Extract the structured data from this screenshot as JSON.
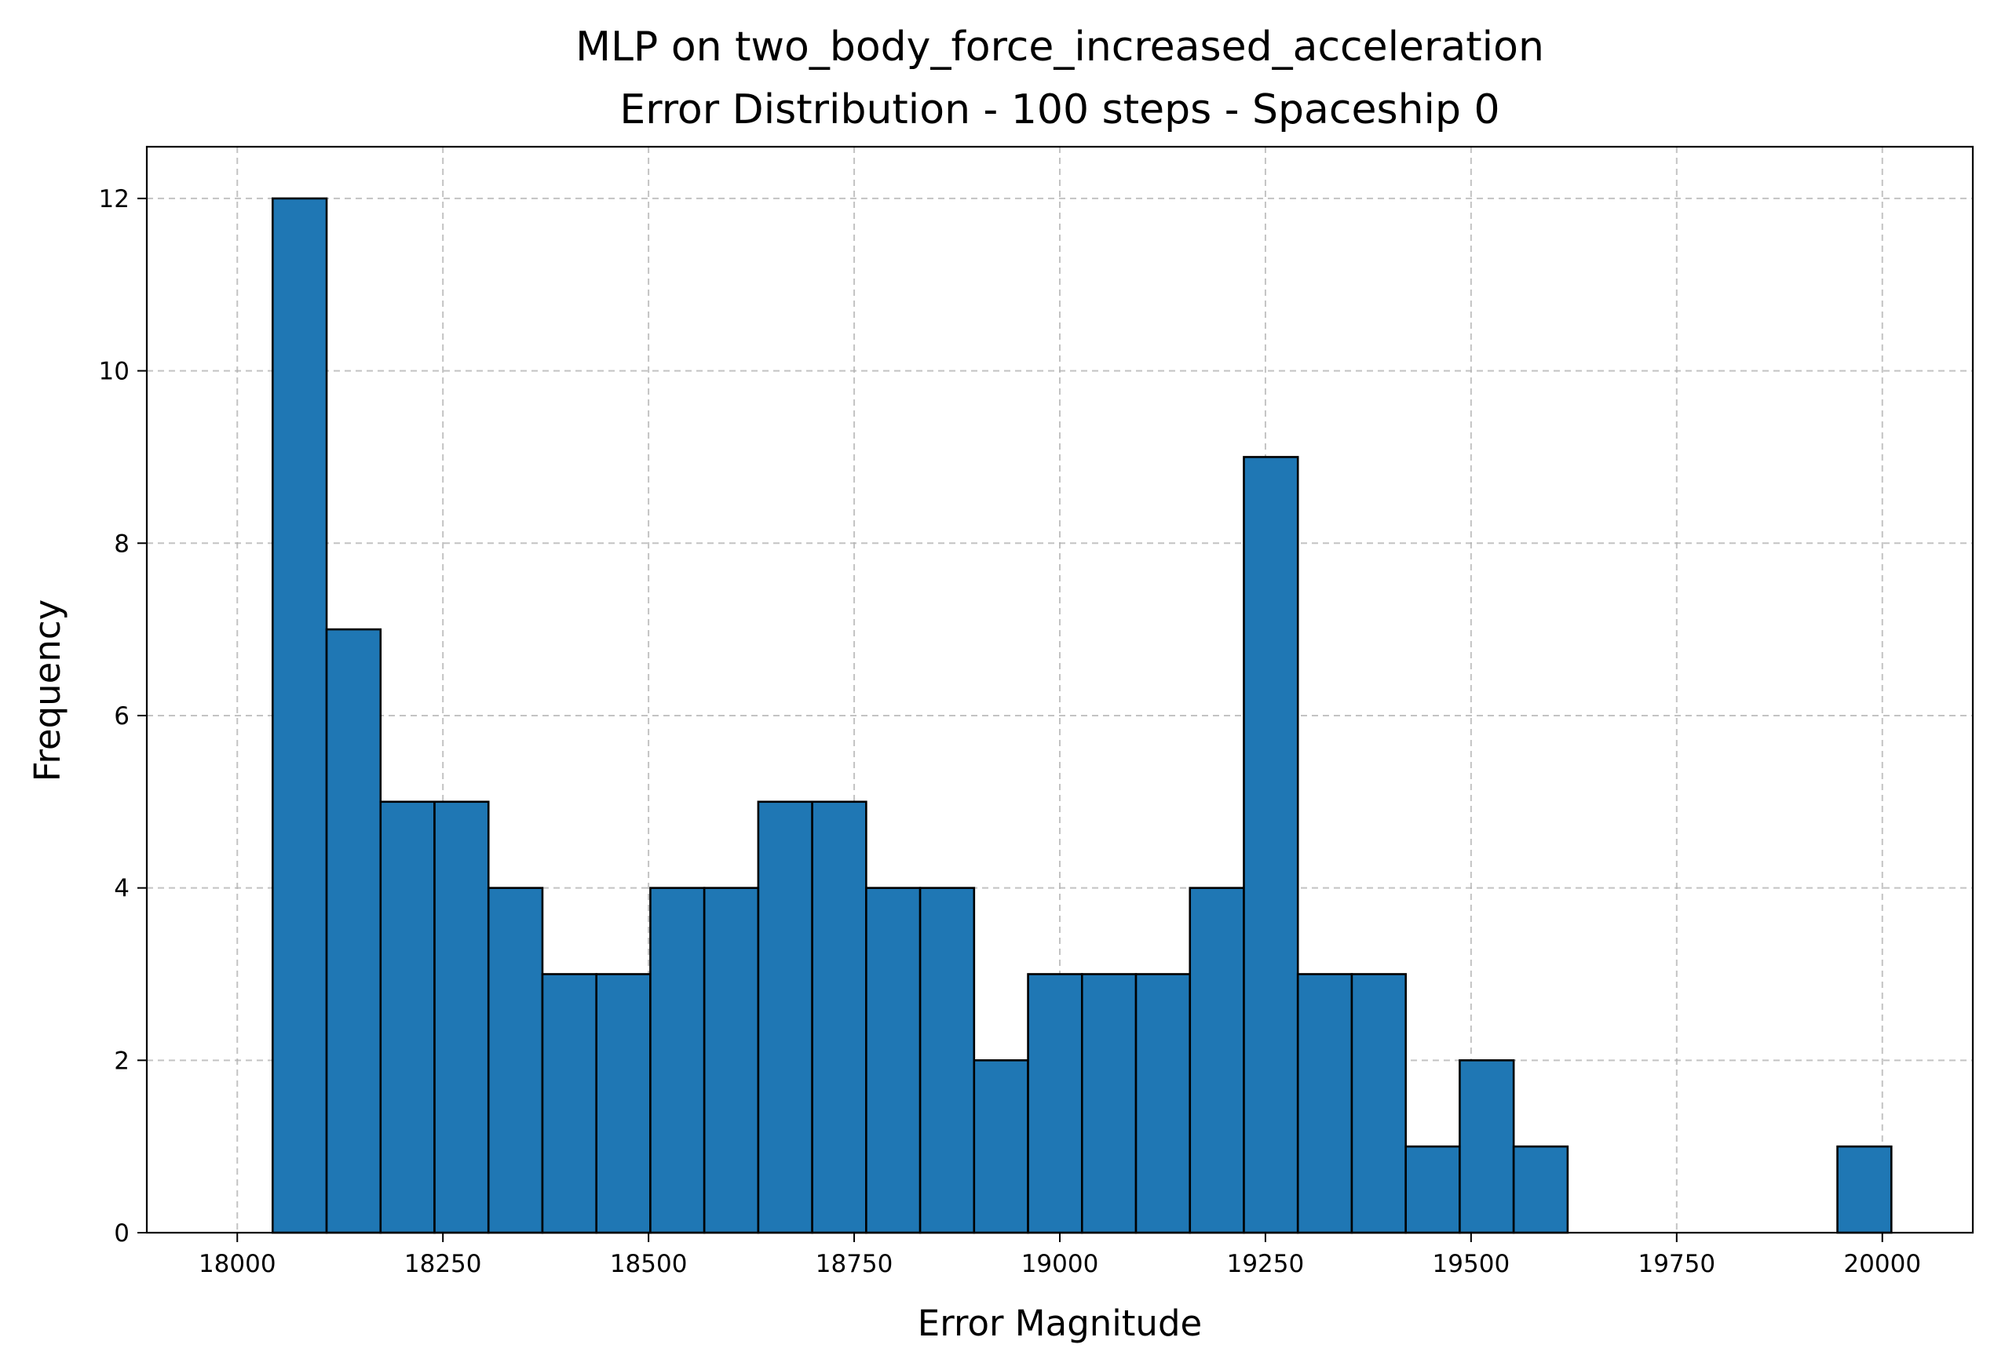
{
  "chart_data": {
    "type": "bar",
    "title_line1": "MLP on two_body_force_increased_acceleration",
    "title_line2": "Error Distribution - 100 steps - Spaceship 0",
    "xlabel": "Error Magnitude",
    "ylabel": "Frequency",
    "xlim": [
      17890,
      20110
    ],
    "ylim": [
      0,
      12.6
    ],
    "grid": true,
    "x_ticks": [
      18000,
      18250,
      18500,
      18750,
      19000,
      19250,
      19500,
      19750,
      20000
    ],
    "x_tick_labels": [
      "18000",
      "18250",
      "18500",
      "18750",
      "19000",
      "19250",
      "19500",
      "19750",
      "20000"
    ],
    "y_ticks": [
      0,
      2,
      4,
      6,
      8,
      10,
      12
    ],
    "y_tick_labels": [
      "0",
      "2",
      "4",
      "6",
      "8",
      "10",
      "12"
    ],
    "bin_start": 18043,
    "bin_width": 65.6,
    "values": [
      12,
      7,
      5,
      5,
      4,
      3,
      3,
      4,
      4,
      5,
      5,
      4,
      4,
      2,
      3,
      3,
      3,
      4,
      9,
      3,
      3,
      1,
      2,
      1,
      0,
      0,
      0,
      0,
      0,
      1
    ],
    "colors": {
      "bar": "#1f77b4",
      "edge": "#000000"
    }
  }
}
